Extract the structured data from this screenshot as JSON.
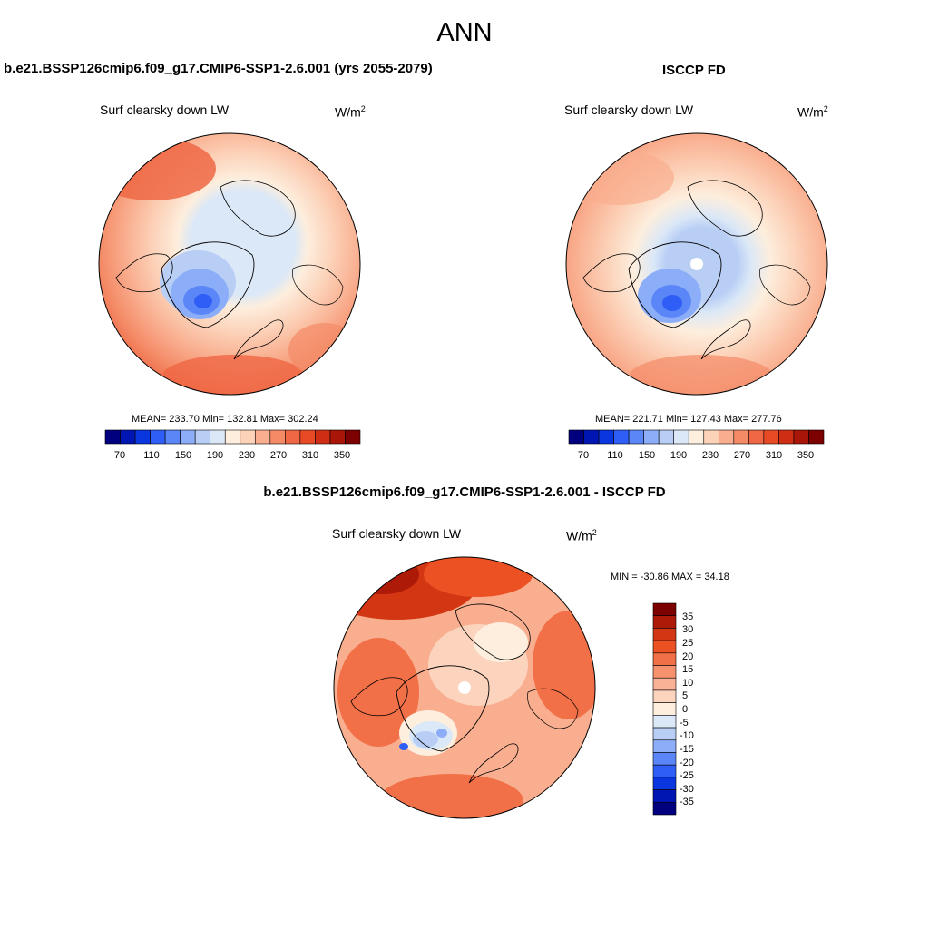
{
  "main_title": "ANN",
  "panels": [
    {
      "case_title": "b.e21.BSSP126cmip6.f09_g17.CMIP6-SSP1-2.6.001 (yrs 2055-2079)",
      "variable": "Surf clearsky down LW",
      "units_base": "W/m",
      "units_exp": "2",
      "stats": "MEAN= 233.70  Min= 132.81  Max= 302.24",
      "stats_values": {
        "mean": 233.7,
        "min": 132.81,
        "max": 302.24
      }
    },
    {
      "case_title": "ISCCP FD",
      "variable": "Surf clearsky down LW",
      "units_base": "W/m",
      "units_exp": "2",
      "stats": "MEAN= 221.71  Min= 127.43  Max= 277.76",
      "stats_values": {
        "mean": 221.71,
        "min": 127.43,
        "max": 277.76
      }
    }
  ],
  "diff": {
    "case_title": "b.e21.BSSP126cmip6.f09_g17.CMIP6-SSP1-2.6.001 - ISCCP FD",
    "variable": "Surf clearsky down LW",
    "units_base": "W/m",
    "units_exp": "2",
    "stats": "MIN = -30.86 MAX =  34.18",
    "stats_values": {
      "min": -30.86,
      "max": 34.18
    }
  },
  "abs_colorbar": {
    "tick_labels": [
      "70",
      "110",
      "150",
      "190",
      "230",
      "270",
      "310",
      "350"
    ],
    "colors": [
      "#00007f",
      "#0016b3",
      "#0a36e0",
      "#2e5ef5",
      "#5b86f8",
      "#8cadf7",
      "#b8cef5",
      "#dbe8f7",
      "#fdeedd",
      "#fcd2b9",
      "#f9ae8f",
      "#f48a66",
      "#ef6744",
      "#e84a26",
      "#cf2d14",
      "#a91507",
      "#7d0000"
    ]
  },
  "diff_colorbar": {
    "labels": [
      "35",
      "30",
      "25",
      "20",
      "15",
      "10",
      "5",
      "0",
      "-5",
      "-10",
      "-15",
      "-20",
      "-25",
      "-30",
      "-35"
    ],
    "colors": [
      "#7d0000",
      "#ad1a07",
      "#d33612",
      "#ec5123",
      "#f27047",
      "#f6916e",
      "#f9b296",
      "#fcd4be",
      "#fdeedd",
      "#dbe8f7",
      "#b8cef5",
      "#8cadf7",
      "#5b86f8",
      "#2e5ef5",
      "#0a36e0",
      "#0016b3",
      "#00007f"
    ]
  }
}
